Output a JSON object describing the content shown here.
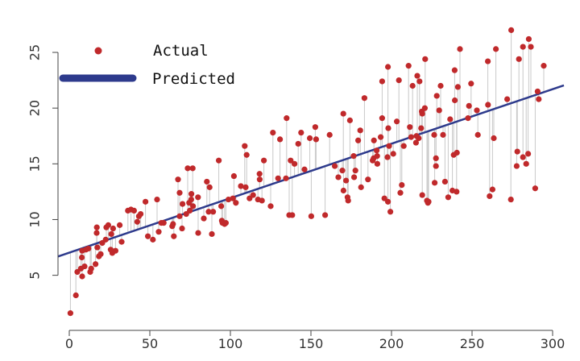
{
  "chart_data": {
    "type": "scatter",
    "title": "",
    "xlabel": "",
    "ylabel": "",
    "xlim": [
      -7,
      307
    ],
    "ylim": [
      0.2,
      28.4
    ],
    "xticks": [
      0,
      50,
      100,
      150,
      200,
      250,
      300
    ],
    "yticks": [
      5,
      10,
      15,
      20,
      25
    ],
    "grid": false,
    "legend_position": "top-left",
    "legend": [
      {
        "label": "Actual",
        "marker": "dot"
      },
      {
        "label": "Predicted",
        "marker": "line"
      }
    ],
    "colors": {
      "actual": "#c0292b",
      "predicted": "#2d3a8c",
      "residual": "#c8c8c8",
      "axis": "#444444"
    },
    "fit_line": {
      "intercept": 7.03,
      "slope": 0.0489
    },
    "series": [
      {
        "name": "Actual",
        "points": [
          [
            0.7,
            1.6
          ],
          [
            4.1,
            3.2
          ],
          [
            5.0,
            5.3
          ],
          [
            7.2,
            5.6
          ],
          [
            8.0,
            4.9
          ],
          [
            7.8,
            6.6
          ],
          [
            8.0,
            7.2
          ],
          [
            9.5,
            5.8
          ],
          [
            10.3,
            7.3
          ],
          [
            11.9,
            7.4
          ],
          [
            13.0,
            5.3
          ],
          [
            13.6,
            5.6
          ],
          [
            16.3,
            6.0
          ],
          [
            17.0,
            8.8
          ],
          [
            17.1,
            9.3
          ],
          [
            17.4,
            7.5
          ],
          [
            18.4,
            6.7
          ],
          [
            19.5,
            6.9
          ],
          [
            20.5,
            7.9
          ],
          [
            22.6,
            8.2
          ],
          [
            23.0,
            9.3
          ],
          [
            24.2,
            9.5
          ],
          [
            26.1,
            8.7
          ],
          [
            26.7,
            7.0
          ],
          [
            25.7,
            7.3
          ],
          [
            27.2,
            9.2
          ],
          [
            28.7,
            7.2
          ],
          [
            31.3,
            9.5
          ],
          [
            32.5,
            8.0
          ],
          [
            36.4,
            10.8
          ],
          [
            38.3,
            10.9
          ],
          [
            40.2,
            10.8
          ],
          [
            42.2,
            9.8
          ],
          [
            43.2,
            10.3
          ],
          [
            44.3,
            10.5
          ],
          [
            47.3,
            11.6
          ],
          [
            48.8,
            8.5
          ],
          [
            51.9,
            8.2
          ],
          [
            54.5,
            11.8
          ],
          [
            55.5,
            8.9
          ],
          [
            57.1,
            9.7
          ],
          [
            58.6,
            9.7
          ],
          [
            63.9,
            9.4
          ],
          [
            64.4,
            9.6
          ],
          [
            64.9,
            8.5
          ],
          [
            67.5,
            13.6
          ],
          [
            68.5,
            10.3
          ],
          [
            68.5,
            12.4
          ],
          [
            70.3,
            11.4
          ],
          [
            70.0,
            9.2
          ],
          [
            72.6,
            10.5
          ],
          [
            73.5,
            14.6
          ],
          [
            74.4,
            11.5
          ],
          [
            75.7,
            11.8
          ],
          [
            75.8,
            12.3
          ],
          [
            76.6,
            14.6
          ],
          [
            74.8,
            10.8
          ],
          [
            76.8,
            11.2
          ],
          [
            79.9,
            12.0
          ],
          [
            80.0,
            8.8
          ],
          [
            83.5,
            10.1
          ],
          [
            85.4,
            13.4
          ],
          [
            86.5,
            10.7
          ],
          [
            87.1,
            12.9
          ],
          [
            88.5,
            8.7
          ],
          [
            89.3,
            10.7
          ],
          [
            92.8,
            15.3
          ],
          [
            94.7,
            9.9
          ],
          [
            95.1,
            9.7
          ],
          [
            94.3,
            11.2
          ],
          [
            96.4,
            9.6
          ],
          [
            97.2,
            9.7
          ],
          [
            98.8,
            11.8
          ],
          [
            101.6,
            11.9
          ],
          [
            102.2,
            13.9
          ],
          [
            103.4,
            11.5
          ],
          [
            106.5,
            13.0
          ],
          [
            108.9,
            16.6
          ],
          [
            109.5,
            12.9
          ],
          [
            110.1,
            15.8
          ],
          [
            111.9,
            11.9
          ],
          [
            114.1,
            12.2
          ],
          [
            117.1,
            11.8
          ],
          [
            118.1,
            14.1
          ],
          [
            118.2,
            13.6
          ],
          [
            119.6,
            11.7
          ],
          [
            120.8,
            15.3
          ],
          [
            125.0,
            11.2
          ],
          [
            126.4,
            17.8
          ],
          [
            129.6,
            13.7
          ],
          [
            130.8,
            17.2
          ],
          [
            134.9,
            19.1
          ],
          [
            134.5,
            13.7
          ],
          [
            136.5,
            10.4
          ],
          [
            137.4,
            15.3
          ],
          [
            138.4,
            10.4
          ],
          [
            139.8,
            15.0
          ],
          [
            142.1,
            16.8
          ],
          [
            143.9,
            17.8
          ],
          [
            146.0,
            14.5
          ],
          [
            149.3,
            17.3
          ],
          [
            150.2,
            10.3
          ],
          [
            152.7,
            18.3
          ],
          [
            153.2,
            17.2
          ],
          [
            158.8,
            10.4
          ],
          [
            161.6,
            17.6
          ],
          [
            164.8,
            14.8
          ],
          [
            167.0,
            13.8
          ],
          [
            169.5,
            14.4
          ],
          [
            170.1,
            19.5
          ],
          [
            171.8,
            13.5
          ],
          [
            170.2,
            12.6
          ],
          [
            172.7,
            12.0
          ],
          [
            173.1,
            11.7
          ],
          [
            174.2,
            18.9
          ],
          [
            176.5,
            15.7
          ],
          [
            177.6,
            14.4
          ],
          [
            176.8,
            13.8
          ],
          [
            179.3,
            17.1
          ],
          [
            180.6,
            18.0
          ],
          [
            181.1,
            12.9
          ],
          [
            183.2,
            20.9
          ],
          [
            185.4,
            13.6
          ],
          [
            188.3,
            15.3
          ],
          [
            189.1,
            17.1
          ],
          [
            188.9,
            15.5
          ],
          [
            190.8,
            16.2
          ],
          [
            191.2,
            15.0
          ],
          [
            191.1,
            15.7
          ],
          [
            193.3,
            17.4
          ],
          [
            194.2,
            22.4
          ],
          [
            194.2,
            19.1
          ],
          [
            195.6,
            11.9
          ],
          [
            197.5,
            15.6
          ],
          [
            197.8,
            23.7
          ],
          [
            197.8,
            11.6
          ],
          [
            198.0,
            18.2
          ],
          [
            198.5,
            16.6
          ],
          [
            199.3,
            10.7
          ],
          [
            201.1,
            15.9
          ],
          [
            203.3,
            18.8
          ],
          [
            204.6,
            22.5
          ],
          [
            205.5,
            12.4
          ],
          [
            206.4,
            13.1
          ],
          [
            207.6,
            16.6
          ],
          [
            210.6,
            23.8
          ],
          [
            211.4,
            18.3
          ],
          [
            212.2,
            17.4
          ],
          [
            213.1,
            22.0
          ],
          [
            215.2,
            16.9
          ],
          [
            215.5,
            17.5
          ],
          [
            216.0,
            22.9
          ],
          [
            216.9,
            17.3
          ],
          [
            217.4,
            22.4
          ],
          [
            218.4,
            18.2
          ],
          [
            218.8,
            19.7
          ],
          [
            219.1,
            19.5
          ],
          [
            219.1,
            12.2
          ],
          [
            220.7,
            20.0
          ],
          [
            220.9,
            24.4
          ],
          [
            222.0,
            11.7
          ],
          [
            222.6,
            11.5
          ],
          [
            223.0,
            11.6
          ],
          [
            226.5,
            17.6
          ],
          [
            226.8,
            13.3
          ],
          [
            227.6,
            15.5
          ],
          [
            227.6,
            14.8
          ],
          [
            228.1,
            21.1
          ],
          [
            229.6,
            19.8
          ],
          [
            230.5,
            22.0
          ],
          [
            232.0,
            17.6
          ],
          [
            233.2,
            13.4
          ],
          [
            235.2,
            12.0
          ],
          [
            236.4,
            19.0
          ],
          [
            237.8,
            12.6
          ],
          [
            238.6,
            15.8
          ],
          [
            239.2,
            23.4
          ],
          [
            239.3,
            20.7
          ],
          [
            240.4,
            12.5
          ],
          [
            240.6,
            16.0
          ],
          [
            241.2,
            21.9
          ],
          [
            242.5,
            25.3
          ],
          [
            247.5,
            19.1
          ],
          [
            248.1,
            20.2
          ],
          [
            249.4,
            22.2
          ],
          [
            253.6,
            17.6
          ],
          [
            253.0,
            19.8
          ],
          [
            259.8,
            24.2
          ],
          [
            259.9,
            20.3
          ],
          [
            260.9,
            12.1
          ],
          [
            262.7,
            12.7
          ],
          [
            263.5,
            17.3
          ],
          [
            264.8,
            25.3
          ],
          [
            271.8,
            20.8
          ],
          [
            274.1,
            11.8
          ],
          [
            274.3,
            27.0
          ],
          [
            277.7,
            14.8
          ],
          [
            278.1,
            16.1
          ],
          [
            279.1,
            24.4
          ],
          [
            281.6,
            25.5
          ],
          [
            281.6,
            15.6
          ],
          [
            283.6,
            15.0
          ],
          [
            284.8,
            15.9
          ],
          [
            285.2,
            26.2
          ],
          [
            286.5,
            25.5
          ],
          [
            289.2,
            12.8
          ],
          [
            290.7,
            21.5
          ],
          [
            291.4,
            20.8
          ],
          [
            294.5,
            23.8
          ]
        ]
      },
      {
        "name": "Predicted",
        "line_from_x": -7,
        "line_to_x": 307
      }
    ]
  }
}
